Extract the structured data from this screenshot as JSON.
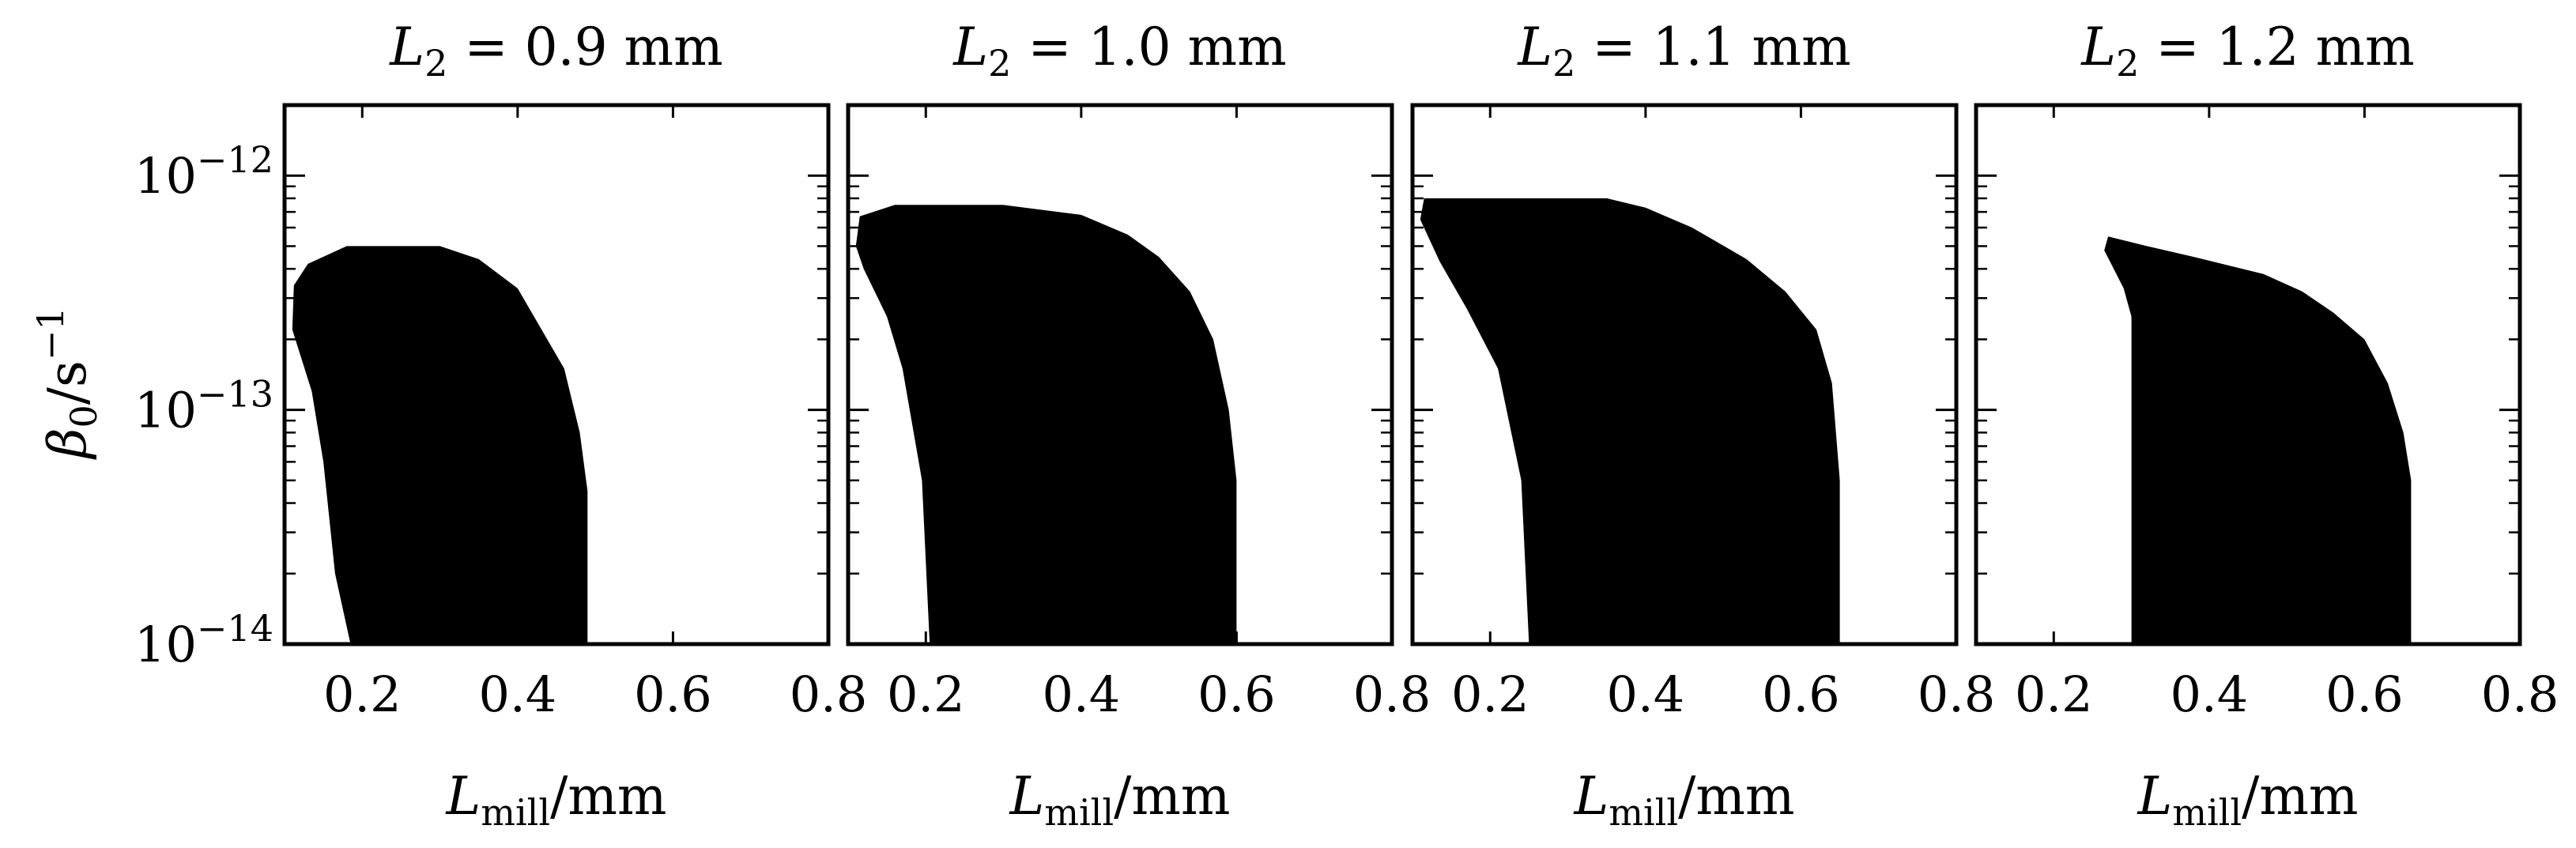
{
  "chart_data": [
    {
      "type": "area",
      "title": "L_2 = 0.9 mm",
      "title_parts": {
        "symbol": "L",
        "sub": "2",
        "rest": " = 0.9 mm"
      },
      "xlabel": "L_mill / mm",
      "ylabel": "β_0 / s^-1",
      "xlim": [
        0.1,
        0.8
      ],
      "ylim": [
        1e-14,
        2e-12
      ],
      "yscale": "log",
      "x_ticks": [
        "0.2",
        "0.4",
        "0.6",
        "0.8"
      ],
      "y_ticks": [
        "10^-12",
        "10^-13",
        "10^-14"
      ],
      "grid": false,
      "region": [
        [
          0.185,
          1e-14
        ],
        [
          0.165,
          2e-14
        ],
        [
          0.15,
          6e-14
        ],
        [
          0.135,
          1.2e-13
        ],
        [
          0.11,
          2.2e-13
        ],
        [
          0.112,
          3.4e-13
        ],
        [
          0.13,
          4.2e-13
        ],
        [
          0.18,
          5e-13
        ],
        [
          0.3,
          5e-13
        ],
        [
          0.35,
          4.4e-13
        ],
        [
          0.4,
          3.3e-13
        ],
        [
          0.46,
          1.5e-13
        ],
        [
          0.48,
          8e-14
        ],
        [
          0.49,
          4.5e-14
        ],
        [
          0.49,
          1e-14
        ]
      ]
    },
    {
      "type": "area",
      "title": "L_2 = 1.0 mm",
      "title_parts": {
        "symbol": "L",
        "sub": "2",
        "rest": " = 1.0 mm"
      },
      "xlabel": "L_mill / mm",
      "ylabel": "",
      "xlim": [
        0.1,
        0.8
      ],
      "ylim": [
        1e-14,
        2e-12
      ],
      "yscale": "log",
      "x_ticks": [
        "0.2",
        "0.4",
        "0.6",
        "0.8"
      ],
      "grid": false,
      "region": [
        [
          0.205,
          1e-14
        ],
        [
          0.195,
          5e-14
        ],
        [
          0.17,
          1.5e-13
        ],
        [
          0.15,
          2.5e-13
        ],
        [
          0.12,
          4e-13
        ],
        [
          0.11,
          5e-13
        ],
        [
          0.115,
          6.7e-13
        ],
        [
          0.16,
          7.5e-13
        ],
        [
          0.3,
          7.5e-13
        ],
        [
          0.4,
          6.8e-13
        ],
        [
          0.46,
          5.6e-13
        ],
        [
          0.5,
          4.5e-13
        ],
        [
          0.54,
          3.2e-13
        ],
        [
          0.57,
          2e-13
        ],
        [
          0.59,
          1e-13
        ],
        [
          0.6,
          5e-14
        ],
        [
          0.6,
          1e-14
        ]
      ]
    },
    {
      "type": "area",
      "title": "L_2 = 1.1 mm",
      "title_parts": {
        "symbol": "L",
        "sub": "2",
        "rest": " = 1.1 mm"
      },
      "xlabel": "L_mill / mm",
      "ylabel": "",
      "xlim": [
        0.1,
        0.8
      ],
      "ylim": [
        1e-14,
        2e-12
      ],
      "yscale": "log",
      "x_ticks": [
        "0.2",
        "0.4",
        "0.6",
        "0.8"
      ],
      "grid": false,
      "region": [
        [
          0.25,
          1e-14
        ],
        [
          0.24,
          5e-14
        ],
        [
          0.21,
          1.5e-13
        ],
        [
          0.17,
          2.7e-13
        ],
        [
          0.135,
          4.3e-13
        ],
        [
          0.11,
          6.5e-13
        ],
        [
          0.115,
          8e-13
        ],
        [
          0.35,
          8e-13
        ],
        [
          0.4,
          7.3e-13
        ],
        [
          0.46,
          6e-13
        ],
        [
          0.53,
          4.4e-13
        ],
        [
          0.58,
          3.2e-13
        ],
        [
          0.62,
          2.2e-13
        ],
        [
          0.64,
          1.3e-13
        ],
        [
          0.65,
          5e-14
        ],
        [
          0.65,
          1e-14
        ]
      ]
    },
    {
      "type": "area",
      "title": "L_2 = 1.2 mm",
      "title_parts": {
        "symbol": "L",
        "sub": "2",
        "rest": " = 1.2 mm"
      },
      "xlabel": "L_mill / mm",
      "ylabel": "",
      "xlim": [
        0.1,
        0.8
      ],
      "ylim": [
        1e-14,
        2e-12
      ],
      "yscale": "log",
      "x_ticks": [
        "0.2",
        "0.4",
        "0.6",
        "0.8"
      ],
      "grid": false,
      "region": [
        [
          0.3,
          1e-14
        ],
        [
          0.3,
          2.5e-13
        ],
        [
          0.29,
          3.3e-13
        ],
        [
          0.265,
          4.8e-13
        ],
        [
          0.27,
          5.5e-13
        ],
        [
          0.32,
          5e-13
        ],
        [
          0.38,
          4.5e-13
        ],
        [
          0.47,
          3.8e-13
        ],
        [
          0.52,
          3.2e-13
        ],
        [
          0.56,
          2.6e-13
        ],
        [
          0.6,
          2e-13
        ],
        [
          0.63,
          1.3e-13
        ],
        [
          0.65,
          8e-14
        ],
        [
          0.66,
          5e-14
        ],
        [
          0.66,
          1e-14
        ]
      ]
    }
  ]
}
